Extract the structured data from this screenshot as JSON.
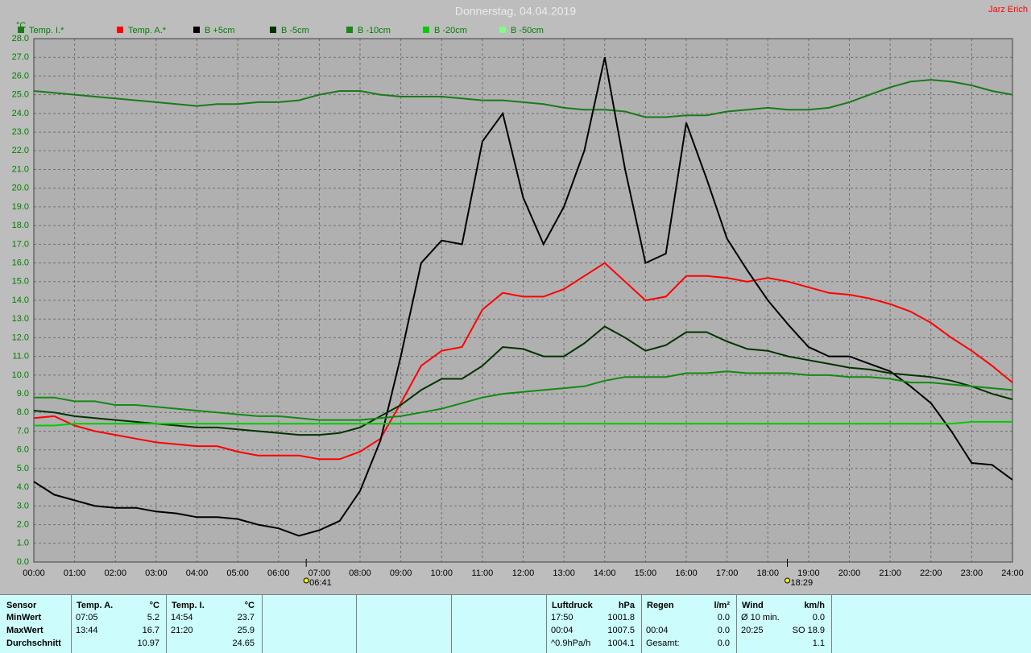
{
  "chart_data": {
    "type": "line",
    "title": "Donnerstag, 04.04.2019",
    "author": "Jarz Erich",
    "y_unit": "°C",
    "xlim": [
      0,
      24
    ],
    "ylim": [
      0,
      28
    ],
    "grid": true,
    "xticks": [
      {
        "value": 0,
        "label": "00:00"
      },
      {
        "value": 1,
        "label": "01:00"
      },
      {
        "value": 2,
        "label": "02:00"
      },
      {
        "value": 3,
        "label": "03:00"
      },
      {
        "value": 4,
        "label": "04:00"
      },
      {
        "value": 5,
        "label": "05:00"
      },
      {
        "value": 6,
        "label": "06:00"
      },
      {
        "value": 7,
        "label": "07:00"
      },
      {
        "value": 8,
        "label": "08:00"
      },
      {
        "value": 9,
        "label": "09:00"
      },
      {
        "value": 10,
        "label": "10:00"
      },
      {
        "value": 11,
        "label": "11:00"
      },
      {
        "value": 12,
        "label": "12:00"
      },
      {
        "value": 13,
        "label": "13:00"
      },
      {
        "value": 14,
        "label": "14:00"
      },
      {
        "value": 15,
        "label": "15:00"
      },
      {
        "value": 16,
        "label": "16:00"
      },
      {
        "value": 17,
        "label": "17:00"
      },
      {
        "value": 18,
        "label": "18:00"
      },
      {
        "value": 19,
        "label": "19:00"
      },
      {
        "value": 20,
        "label": "20:00"
      },
      {
        "value": 21,
        "label": "21:00"
      },
      {
        "value": 22,
        "label": "22:00"
      },
      {
        "value": 23,
        "label": "23:00"
      },
      {
        "value": 24,
        "label": "24:00"
      }
    ],
    "yticks": [
      {
        "value": 0,
        "label": "0.0"
      },
      {
        "value": 1,
        "label": "1.0"
      },
      {
        "value": 2,
        "label": "2.0"
      },
      {
        "value": 3,
        "label": "3.0"
      },
      {
        "value": 4,
        "label": "4.0"
      },
      {
        "value": 5,
        "label": "5.0"
      },
      {
        "value": 6,
        "label": "6.0"
      },
      {
        "value": 7,
        "label": "7.0"
      },
      {
        "value": 8,
        "label": "8.0"
      },
      {
        "value": 9,
        "label": "9.0"
      },
      {
        "value": 10,
        "label": "10.0"
      },
      {
        "value": 11,
        "label": "11.0"
      },
      {
        "value": 12,
        "label": "12.0"
      },
      {
        "value": 13,
        "label": "13.0"
      },
      {
        "value": 14,
        "label": "14.0"
      },
      {
        "value": 15,
        "label": "15.0"
      },
      {
        "value": 16,
        "label": "16.0"
      },
      {
        "value": 17,
        "label": "17.0"
      },
      {
        "value": 18,
        "label": "18.0"
      },
      {
        "value": 19,
        "label": "19.0"
      },
      {
        "value": 20,
        "label": "20.0"
      },
      {
        "value": 21,
        "label": "21.0"
      },
      {
        "value": 22,
        "label": "22.0"
      },
      {
        "value": 23,
        "label": "23.0"
      },
      {
        "value": 24,
        "label": "24.0"
      },
      {
        "value": 25,
        "label": "25.0"
      },
      {
        "value": 26,
        "label": "26.0"
      },
      {
        "value": 27,
        "label": "27.0"
      },
      {
        "value": 28,
        "label": "28.0"
      }
    ],
    "annotations": [
      {
        "x": 6.68,
        "label": "06:41"
      },
      {
        "x": 18.48,
        "label": "18:29"
      }
    ],
    "x": [
      0,
      0.5,
      1,
      1.5,
      2,
      2.5,
      3,
      3.5,
      4,
      4.5,
      5,
      5.5,
      6,
      6.5,
      7,
      7.5,
      8,
      8.5,
      9,
      9.5,
      10,
      10.5,
      11,
      11.5,
      12,
      12.5,
      13,
      13.5,
      14,
      14.5,
      15,
      15.5,
      16,
      16.5,
      17,
      17.5,
      18,
      18.5,
      19,
      19.5,
      20,
      20.5,
      21,
      21.5,
      22,
      22.5,
      23,
      23.5,
      24
    ],
    "series": [
      {
        "name": "Temp. I.*",
        "color": "#1a7a1a",
        "values": [
          25.2,
          25.1,
          25.0,
          24.9,
          24.8,
          24.7,
          24.6,
          24.5,
          24.4,
          24.5,
          24.5,
          24.6,
          24.6,
          24.7,
          25.0,
          25.2,
          25.2,
          25.0,
          24.9,
          24.9,
          24.9,
          24.8,
          24.7,
          24.7,
          24.6,
          24.5,
          24.3,
          24.2,
          24.2,
          24.1,
          23.8,
          23.8,
          23.9,
          23.9,
          24.1,
          24.2,
          24.3,
          24.2,
          24.2,
          24.3,
          24.6,
          25.0,
          25.4,
          25.7,
          25.8,
          25.7,
          25.5,
          25.2,
          25.0
        ]
      },
      {
        "name": "Temp. A.*",
        "color": "#ff0000",
        "values": [
          7.7,
          7.8,
          7.3,
          7.0,
          6.8,
          6.6,
          6.4,
          6.3,
          6.2,
          6.2,
          5.9,
          5.7,
          5.7,
          5.7,
          5.5,
          5.5,
          5.9,
          6.6,
          8.5,
          10.5,
          11.3,
          11.5,
          13.5,
          14.4,
          14.2,
          14.2,
          14.6,
          15.3,
          16.0,
          15.0,
          14.0,
          14.2,
          15.3,
          15.3,
          15.2,
          15.0,
          15.2,
          15.0,
          14.7,
          14.4,
          14.3,
          14.1,
          13.8,
          13.4,
          12.8,
          12.0,
          11.3,
          10.5,
          9.6
        ]
      },
      {
        "name": "B +5cm",
        "color": "#000000",
        "values": [
          4.3,
          3.6,
          3.3,
          3.0,
          2.9,
          2.9,
          2.7,
          2.6,
          2.4,
          2.4,
          2.3,
          2.0,
          1.8,
          1.4,
          1.7,
          2.2,
          3.8,
          6.5,
          11.0,
          16.0,
          17.2,
          17.0,
          22.5,
          24.0,
          19.5,
          17.0,
          19.0,
          22.0,
          27.0,
          21.0,
          16.0,
          16.5,
          23.5,
          20.5,
          17.3,
          15.6,
          14.0,
          12.7,
          11.5,
          11.0,
          11.0,
          10.6,
          10.2,
          9.4,
          8.5,
          7.0,
          5.3,
          5.2,
          4.4
        ]
      },
      {
        "name": "B -5cm",
        "color": "#003300",
        "values": [
          8.1,
          8.0,
          7.8,
          7.7,
          7.6,
          7.5,
          7.4,
          7.3,
          7.2,
          7.2,
          7.1,
          7.0,
          6.9,
          6.8,
          6.8,
          6.9,
          7.2,
          7.8,
          8.4,
          9.2,
          9.8,
          9.8,
          10.5,
          11.5,
          11.4,
          11.0,
          11.0,
          11.7,
          12.6,
          12.0,
          11.3,
          11.6,
          12.3,
          12.3,
          11.8,
          11.4,
          11.3,
          11.0,
          10.8,
          10.6,
          10.4,
          10.3,
          10.1,
          10.0,
          9.9,
          9.7,
          9.4,
          9.0,
          8.7
        ]
      },
      {
        "name": "B -10cm",
        "color": "#138a13",
        "values": [
          8.8,
          8.8,
          8.6,
          8.6,
          8.4,
          8.4,
          8.3,
          8.2,
          8.1,
          8.0,
          7.9,
          7.8,
          7.8,
          7.7,
          7.6,
          7.6,
          7.6,
          7.7,
          7.8,
          8.0,
          8.2,
          8.5,
          8.8,
          9.0,
          9.1,
          9.2,
          9.3,
          9.4,
          9.7,
          9.9,
          9.9,
          9.9,
          10.1,
          10.1,
          10.2,
          10.1,
          10.1,
          10.1,
          10.0,
          10.0,
          9.9,
          9.9,
          9.8,
          9.6,
          9.6,
          9.5,
          9.4,
          9.3,
          9.2
        ]
      },
      {
        "name": "B -20cm",
        "color": "#00cc00",
        "values": [
          7.3,
          7.3,
          7.4,
          7.4,
          7.4,
          7.4,
          7.4,
          7.4,
          7.4,
          7.4,
          7.4,
          7.4,
          7.4,
          7.4,
          7.4,
          7.4,
          7.4,
          7.4,
          7.4,
          7.4,
          7.4,
          7.4,
          7.4,
          7.4,
          7.4,
          7.4,
          7.4,
          7.4,
          7.4,
          7.4,
          7.4,
          7.4,
          7.4,
          7.4,
          7.4,
          7.4,
          7.4,
          7.4,
          7.4,
          7.4,
          7.4,
          7.4,
          7.4,
          7.4,
          7.4,
          7.4,
          7.5,
          7.5,
          7.5
        ]
      },
      {
        "name": "B -50cm",
        "color": "#80ff80",
        "values": [
          null,
          null,
          null,
          null,
          null,
          null,
          null,
          null,
          null,
          null,
          null,
          null,
          null,
          null,
          null,
          null,
          null,
          null,
          null,
          null,
          null,
          null,
          null,
          null,
          null,
          null,
          null,
          null,
          null,
          null,
          null,
          null,
          null,
          null,
          null,
          null,
          null,
          null,
          null,
          null,
          null,
          null,
          null,
          null,
          null,
          null,
          null,
          null,
          null
        ]
      }
    ]
  },
  "stats_table": {
    "sensor": {
      "header": "Sensor",
      "rows": [
        "MinWert",
        "MaxWert",
        "Durchschnitt"
      ]
    },
    "groups": [
      {
        "header": "Temp. A.",
        "unit": "°C",
        "rows": [
          {
            "time": "07:05",
            "value": "5.2"
          },
          {
            "time": "13:44",
            "value": "16.7"
          },
          {
            "value": "10.97"
          }
        ]
      },
      {
        "header": "Temp. I.",
        "unit": "°C",
        "rows": [
          {
            "time": "14:54",
            "value": "23.7"
          },
          {
            "time": "21:20",
            "value": "25.9"
          },
          {
            "value": "24.65"
          }
        ]
      },
      {
        "header": "Luftdruck",
        "unit": "hPa",
        "rows": [
          {
            "time": "17:50",
            "value": "1001.8"
          },
          {
            "time": "00:04",
            "value": "1007.5"
          },
          {
            "time": "^0.9hPa/h",
            "value": "1004.1"
          }
        ]
      },
      {
        "header": "Regen",
        "unit": "l/m²",
        "rows": [
          {
            "value": "0.0"
          },
          {
            "time": "00:04",
            "value": "0.0"
          },
          {
            "time": "Gesamt:",
            "value": "0.0"
          }
        ]
      },
      {
        "header": "Wind",
        "unit": "km/h",
        "rows": [
          {
            "time": "Ø 10 min.",
            "value": "0.0"
          },
          {
            "time": "20:25",
            "value": "SO 18.9"
          },
          {
            "value": "1.1"
          }
        ]
      }
    ]
  }
}
